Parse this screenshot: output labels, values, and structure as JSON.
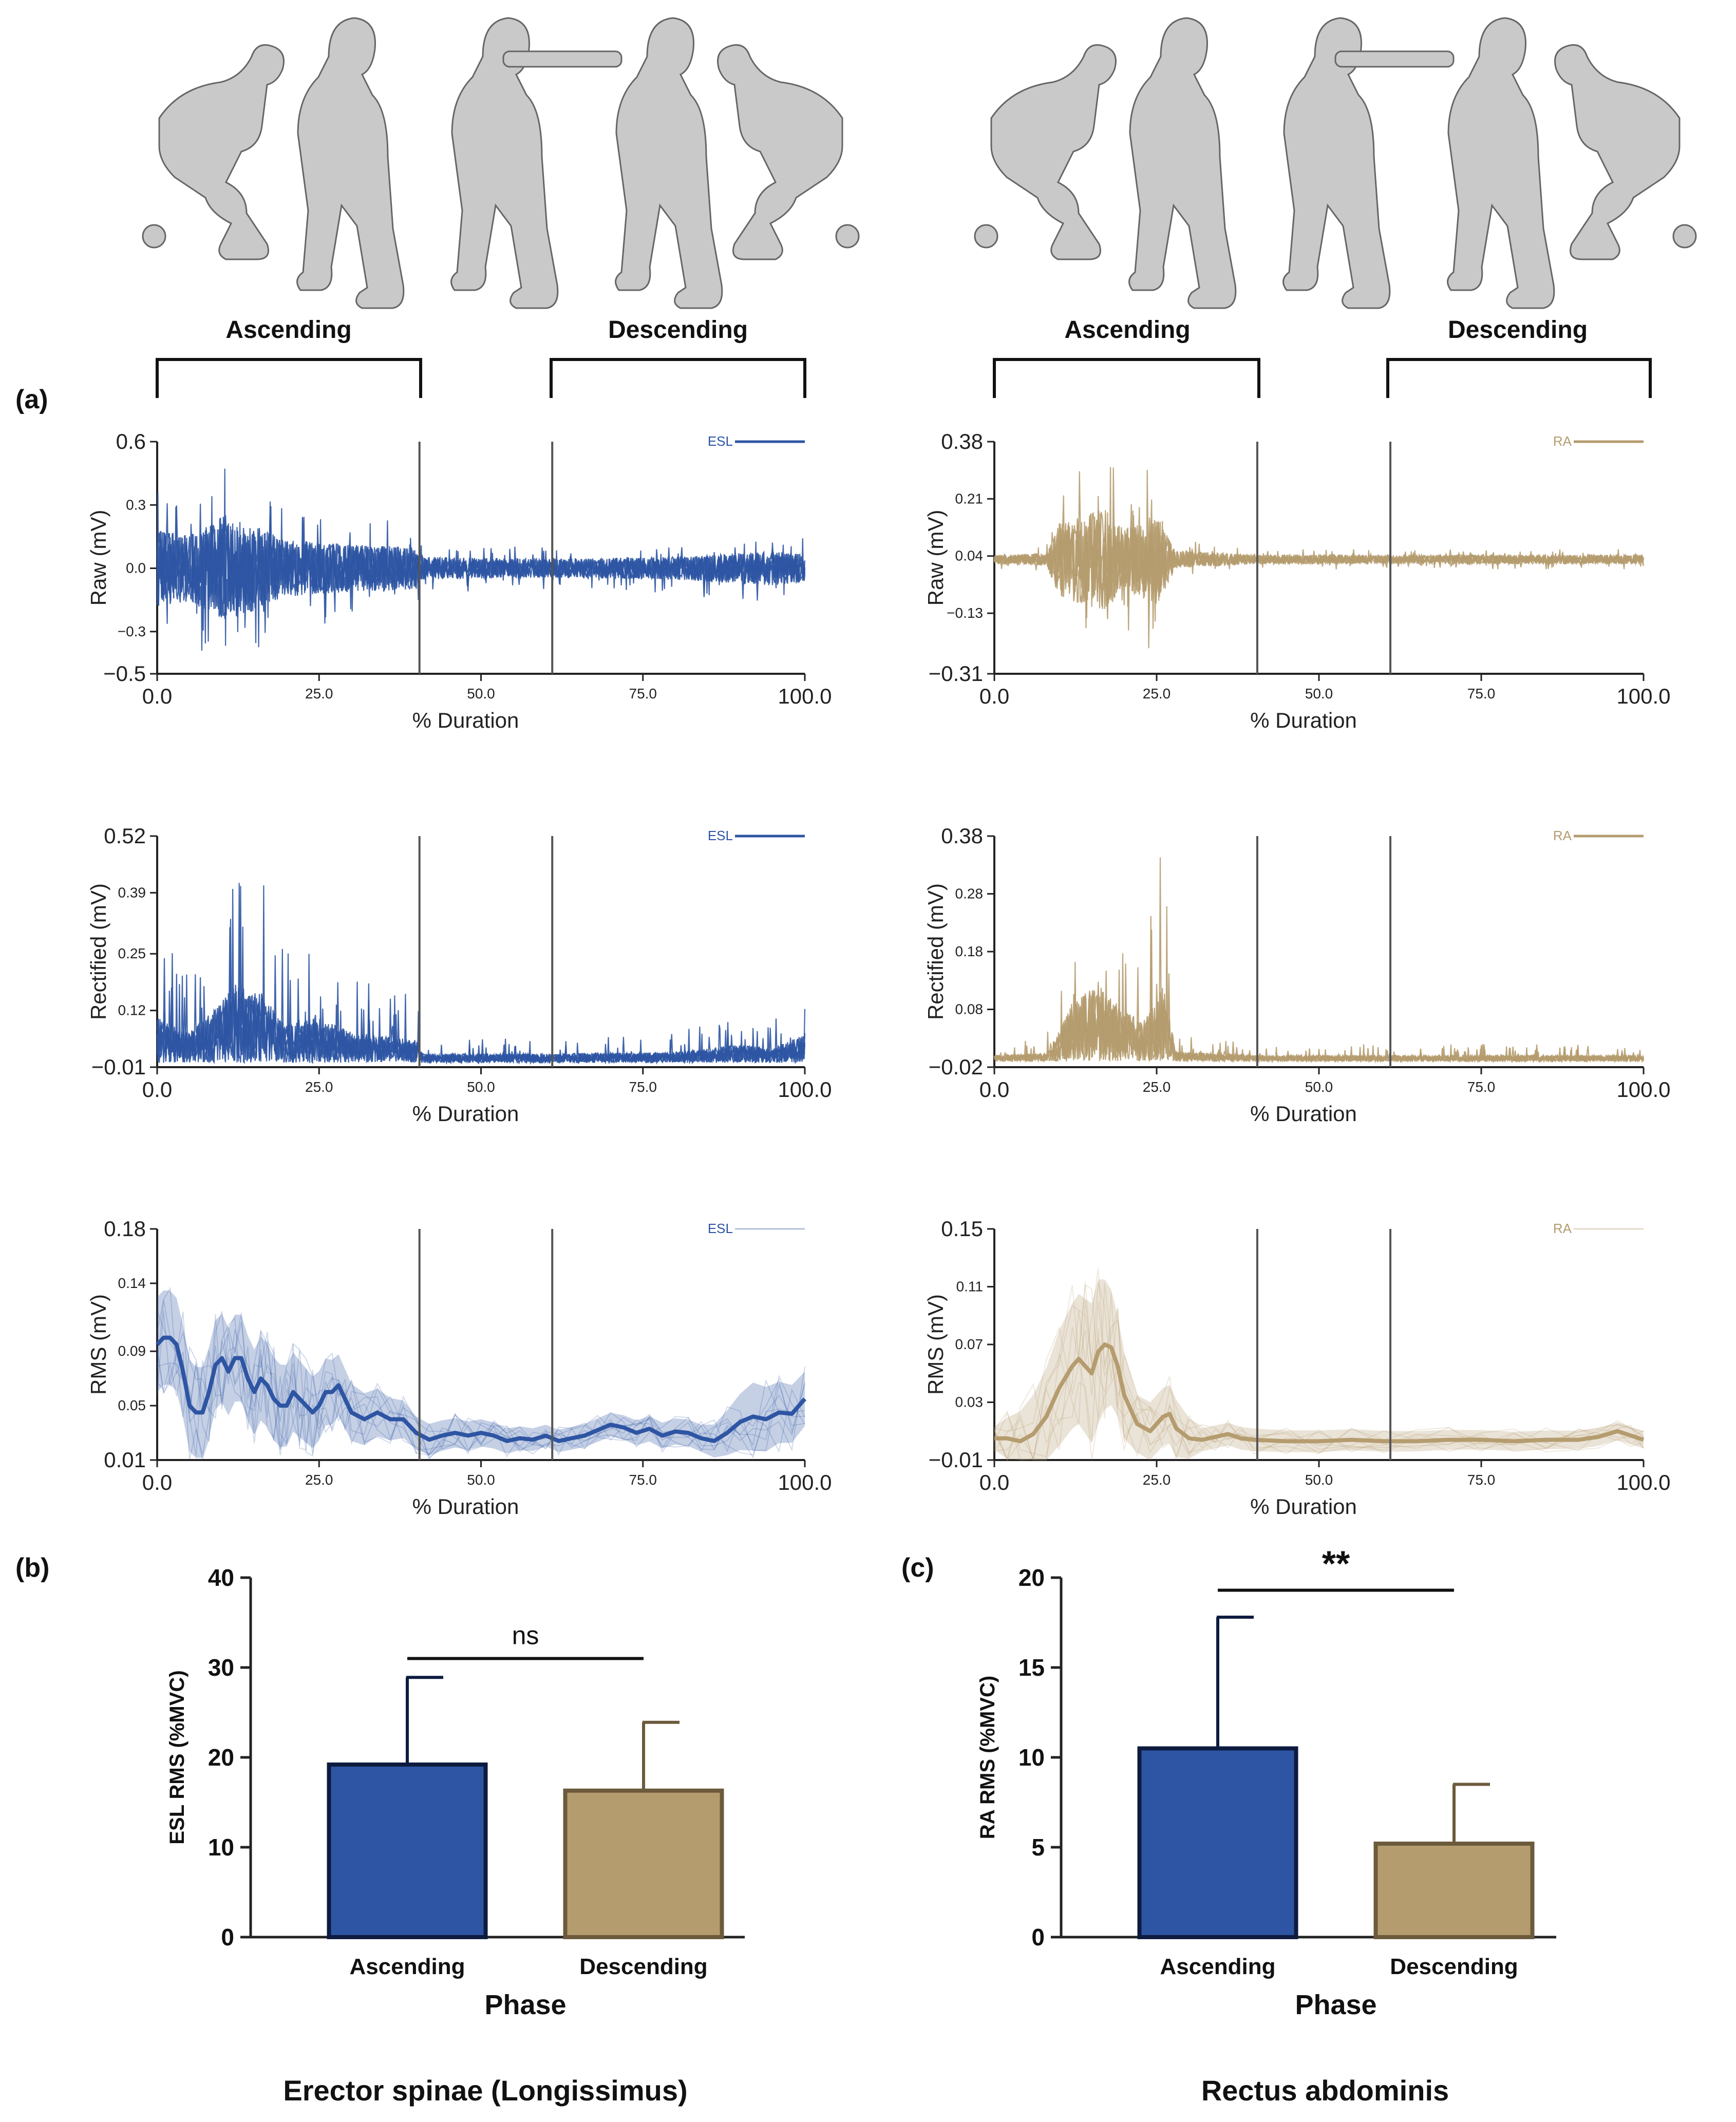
{
  "figure": {
    "panel_labels": {
      "a": "(a)",
      "b": "(b)",
      "c": "(c)"
    },
    "phases": {
      "ascending": "Ascending",
      "descending": "Descending"
    },
    "muscles": {
      "left": "Erector spinae (Longissimus)",
      "right": "Rectus abdominis"
    },
    "colors": {
      "esl": "#2E55A3",
      "ra": "#B59C6F",
      "axis": "#222222",
      "divider": "#555555",
      "figure_silhouette": "#c9c9c9"
    }
  },
  "chart_data": [
    {
      "id": "esl_raw",
      "type": "line",
      "muscle": "ESL",
      "ylabel": "Raw (mV)",
      "xlabel": "% Duration",
      "xlim": [
        0,
        100
      ],
      "ylim": [
        -0.5,
        0.6
      ],
      "xticks": [
        "0.0",
        "25.0",
        "50.0",
        "75.0",
        "100.0"
      ],
      "yticks": [
        {
          "v": -0.5,
          "t": "−0.5"
        },
        {
          "v": -0.3,
          "t": "−0.3"
        },
        {
          "v": 0.0,
          "t": "0.0"
        },
        {
          "v": 0.3,
          "t": "0.3"
        },
        {
          "v": 0.6,
          "t": "0.6"
        }
      ],
      "legend": "ESL",
      "phase_dividers": [
        40.5,
        61.0
      ],
      "envelope": [
        [
          0,
          0.4
        ],
        [
          5,
          0.35
        ],
        [
          10,
          0.55
        ],
        [
          15,
          0.45
        ],
        [
          20,
          0.3
        ],
        [
          30,
          0.25
        ],
        [
          40,
          0.22
        ],
        [
          41,
          0.12
        ],
        [
          60,
          0.1
        ],
        [
          80,
          0.12
        ],
        [
          95,
          0.18
        ],
        [
          100,
          0.15
        ]
      ]
    },
    {
      "id": "ra_raw",
      "type": "line",
      "muscle": "RA",
      "ylabel": "Raw (mV)",
      "xlabel": "% Duration",
      "xlim": [
        0,
        100
      ],
      "ylim": [
        -0.31,
        0.38
      ],
      "xticks": [
        "0.0",
        "25.0",
        "50.0",
        "75.0",
        "100.0"
      ],
      "yticks": [
        {
          "v": -0.31,
          "t": "−0.31"
        },
        {
          "v": -0.13,
          "t": "−0.13"
        },
        {
          "v": 0.04,
          "t": "0.04"
        },
        {
          "v": 0.21,
          "t": "0.21"
        },
        {
          "v": 0.38,
          "t": "0.38"
        }
      ],
      "legend": "RA",
      "phase_dividers": [
        40.5,
        61.0
      ],
      "envelope": [
        [
          0,
          0.03
        ],
        [
          8,
          0.04
        ],
        [
          10,
          0.25
        ],
        [
          14,
          0.3
        ],
        [
          17,
          0.35
        ],
        [
          20,
          0.2
        ],
        [
          25,
          0.3
        ],
        [
          28,
          0.06
        ],
        [
          40,
          0.03
        ],
        [
          100,
          0.03
        ]
      ]
    },
    {
      "id": "esl_rect",
      "type": "line",
      "muscle": "ESL",
      "ylabel": "Rectified (mV)",
      "xlabel": "% Duration",
      "xlim": [
        0,
        100
      ],
      "ylim": [
        -0.01,
        0.52
      ],
      "xticks": [
        "0.0",
        "25.0",
        "50.0",
        "75.0",
        "100.0"
      ],
      "yticks": [
        {
          "v": -0.01,
          "t": "−0.01"
        },
        {
          "v": 0.12,
          "t": "0.12"
        },
        {
          "v": 0.25,
          "t": "0.25"
        },
        {
          "v": 0.39,
          "t": "0.39"
        },
        {
          "v": 0.52,
          "t": "0.52"
        }
      ],
      "legend": "ESL",
      "phase_dividers": [
        40.5,
        61.0
      ],
      "envelope": [
        [
          0,
          0.3
        ],
        [
          5,
          0.2
        ],
        [
          10,
          0.4
        ],
        [
          12,
          0.52
        ],
        [
          16,
          0.45
        ],
        [
          20,
          0.25
        ],
        [
          25,
          0.3
        ],
        [
          30,
          0.2
        ],
        [
          40,
          0.15
        ],
        [
          41,
          0.06
        ],
        [
          60,
          0.06
        ],
        [
          80,
          0.07
        ],
        [
          90,
          0.12
        ],
        [
          95,
          0.09
        ],
        [
          100,
          0.2
        ]
      ]
    },
    {
      "id": "ra_rect",
      "type": "line",
      "muscle": "RA",
      "ylabel": "Rectified (mV)",
      "xlabel": "% Duration",
      "xlim": [
        0,
        100
      ],
      "ylim": [
        -0.02,
        0.38
      ],
      "xticks": [
        "0.0",
        "25.0",
        "50.0",
        "75.0",
        "100.0"
      ],
      "yticks": [
        {
          "v": -0.02,
          "t": "−0.02"
        },
        {
          "v": 0.08,
          "t": "0.08"
        },
        {
          "v": 0.18,
          "t": "0.18"
        },
        {
          "v": 0.28,
          "t": "0.28"
        },
        {
          "v": 0.38,
          "t": "0.38"
        }
      ],
      "legend": "RA",
      "phase_dividers": [
        40.5,
        61.0
      ],
      "envelope": [
        [
          0,
          0.03
        ],
        [
          8,
          0.04
        ],
        [
          10,
          0.15
        ],
        [
          12,
          0.3
        ],
        [
          16,
          0.38
        ],
        [
          20,
          0.25
        ],
        [
          23,
          0.2
        ],
        [
          26,
          0.38
        ],
        [
          28,
          0.05
        ],
        [
          40,
          0.03
        ],
        [
          100,
          0.03
        ]
      ]
    },
    {
      "id": "esl_rms",
      "type": "line",
      "muscle": "ESL",
      "ylabel": "RMS (mV)",
      "xlabel": "% Duration",
      "xlim": [
        0,
        100
      ],
      "ylim": [
        0.01,
        0.18
      ],
      "xticks": [
        "0.0",
        "25.0",
        "50.0",
        "75.0",
        "100.0"
      ],
      "yticks": [
        {
          "v": 0.01,
          "t": "0.01"
        },
        {
          "v": 0.05,
          "t": "0.05"
        },
        {
          "v": 0.09,
          "t": "0.09"
        },
        {
          "v": 0.14,
          "t": "0.14"
        },
        {
          "v": 0.18,
          "t": "0.18"
        }
      ],
      "legend": "ESL",
      "phase_dividers": [
        40.5,
        61.0
      ],
      "mean": [
        [
          0,
          0.095
        ],
        [
          1,
          0.1
        ],
        [
          2,
          0.1
        ],
        [
          3,
          0.095
        ],
        [
          4,
          0.075
        ],
        [
          5,
          0.05
        ],
        [
          6,
          0.045
        ],
        [
          7,
          0.045
        ],
        [
          8,
          0.06
        ],
        [
          9,
          0.08
        ],
        [
          10,
          0.085
        ],
        [
          11,
          0.075
        ],
        [
          12,
          0.085
        ],
        [
          13,
          0.085
        ],
        [
          14,
          0.07
        ],
        [
          15,
          0.06
        ],
        [
          16,
          0.07
        ],
        [
          17,
          0.065
        ],
        [
          18,
          0.055
        ],
        [
          19,
          0.05
        ],
        [
          20,
          0.05
        ],
        [
          21,
          0.06
        ],
        [
          22,
          0.055
        ],
        [
          23,
          0.05
        ],
        [
          24,
          0.045
        ],
        [
          25,
          0.05
        ],
        [
          26,
          0.06
        ],
        [
          27,
          0.06
        ],
        [
          28,
          0.065
        ],
        [
          29,
          0.055
        ],
        [
          30,
          0.045
        ],
        [
          32,
          0.04
        ],
        [
          34,
          0.045
        ],
        [
          36,
          0.04
        ],
        [
          38,
          0.04
        ],
        [
          40,
          0.03
        ],
        [
          42,
          0.025
        ],
        [
          44,
          0.028
        ],
        [
          46,
          0.03
        ],
        [
          48,
          0.028
        ],
        [
          50,
          0.03
        ],
        [
          52,
          0.028
        ],
        [
          54,
          0.024
        ],
        [
          56,
          0.026
        ],
        [
          58,
          0.025
        ],
        [
          60,
          0.028
        ],
        [
          62,
          0.024
        ],
        [
          64,
          0.026
        ],
        [
          66,
          0.028
        ],
        [
          68,
          0.032
        ],
        [
          70,
          0.036
        ],
        [
          72,
          0.034
        ],
        [
          74,
          0.03
        ],
        [
          76,
          0.033
        ],
        [
          78,
          0.028
        ],
        [
          80,
          0.031
        ],
        [
          82,
          0.03
        ],
        [
          84,
          0.026
        ],
        [
          86,
          0.024
        ],
        [
          88,
          0.03
        ],
        [
          90,
          0.038
        ],
        [
          92,
          0.042
        ],
        [
          94,
          0.04
        ],
        [
          96,
          0.045
        ],
        [
          98,
          0.044
        ],
        [
          100,
          0.055
        ]
      ],
      "band_halfwidth": [
        [
          0,
          0.035
        ],
        [
          20,
          0.03
        ],
        [
          40,
          0.012
        ],
        [
          60,
          0.008
        ],
        [
          85,
          0.01
        ],
        [
          92,
          0.025
        ],
        [
          100,
          0.02
        ]
      ]
    },
    {
      "id": "ra_rms",
      "type": "line",
      "muscle": "RA",
      "ylabel": "RMS (mV)",
      "xlabel": "% Duration",
      "xlim": [
        0,
        100
      ],
      "ylim": [
        -0.01,
        0.15
      ],
      "xticks": [
        "0.0",
        "25.0",
        "50.0",
        "75.0",
        "100.0"
      ],
      "yticks": [
        {
          "v": -0.01,
          "t": "−0.01"
        },
        {
          "v": 0.03,
          "t": "0.03"
        },
        {
          "v": 0.07,
          "t": "0.07"
        },
        {
          "v": 0.11,
          "t": "0.11"
        },
        {
          "v": 0.15,
          "t": "0.15"
        }
      ],
      "legend": "RA",
      "phase_dividers": [
        40.5,
        61.0
      ],
      "mean": [
        [
          0,
          0.005
        ],
        [
          2,
          0.005
        ],
        [
          4,
          0.003
        ],
        [
          6,
          0.008
        ],
        [
          8,
          0.02
        ],
        [
          10,
          0.04
        ],
        [
          12,
          0.055
        ],
        [
          13,
          0.06
        ],
        [
          14,
          0.055
        ],
        [
          15,
          0.05
        ],
        [
          16,
          0.065
        ],
        [
          17,
          0.07
        ],
        [
          18,
          0.068
        ],
        [
          19,
          0.055
        ],
        [
          20,
          0.035
        ],
        [
          22,
          0.015
        ],
        [
          24,
          0.01
        ],
        [
          26,
          0.02
        ],
        [
          27,
          0.022
        ],
        [
          28,
          0.012
        ],
        [
          30,
          0.005
        ],
        [
          32,
          0.004
        ],
        [
          34,
          0.006
        ],
        [
          36,
          0.008
        ],
        [
          38,
          0.005
        ],
        [
          40,
          0.004
        ],
        [
          45,
          0.003
        ],
        [
          50,
          0.003
        ],
        [
          55,
          0.004
        ],
        [
          60,
          0.003
        ],
        [
          65,
          0.003
        ],
        [
          70,
          0.004
        ],
        [
          75,
          0.004
        ],
        [
          80,
          0.003
        ],
        [
          85,
          0.004
        ],
        [
          90,
          0.004
        ],
        [
          93,
          0.006
        ],
        [
          96,
          0.01
        ],
        [
          98,
          0.007
        ],
        [
          100,
          0.004
        ]
      ],
      "band_halfwidth": [
        [
          0,
          0.008
        ],
        [
          10,
          0.04
        ],
        [
          16,
          0.05
        ],
        [
          22,
          0.02
        ],
        [
          28,
          0.02
        ],
        [
          32,
          0.008
        ],
        [
          100,
          0.006
        ]
      ]
    },
    {
      "id": "esl_bar",
      "type": "bar",
      "panel": "(b)",
      "ylabel": "ESL RMS (%MVC)",
      "xlabel": "Phase",
      "categories": [
        "Ascending",
        "Descending"
      ],
      "values": [
        19.2,
        16.3
      ],
      "errors": [
        9.7,
        7.6
      ],
      "ylim": [
        0,
        40
      ],
      "yticks": [
        0,
        10,
        20,
        30,
        40
      ],
      "significance": "ns"
    },
    {
      "id": "ra_bar",
      "type": "bar",
      "panel": "(c)",
      "ylabel": "RA RMS (%MVC)",
      "xlabel": "Phase",
      "categories": [
        "Ascending",
        "Descending"
      ],
      "values": [
        10.5,
        5.2
      ],
      "errors": [
        7.3,
        3.3
      ],
      "ylim": [
        0,
        20
      ],
      "yticks": [
        0,
        5,
        10,
        15,
        20
      ],
      "significance": "**"
    }
  ]
}
